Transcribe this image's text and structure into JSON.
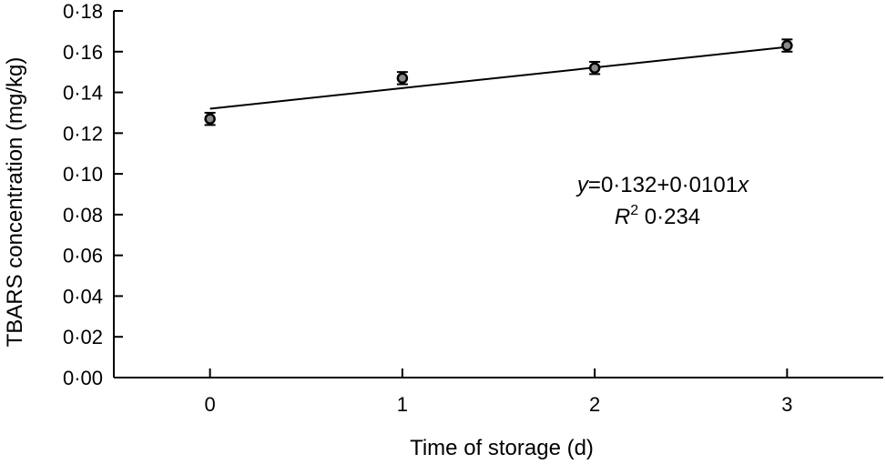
{
  "chart_data": {
    "type": "scatter",
    "xlabel": "Time of storage (d)",
    "ylabel": "TBARS concentration (mg/kg)",
    "xlim": [
      -0.5,
      3.5
    ],
    "ylim": [
      0,
      0.18
    ],
    "x_ticks": [
      0,
      1,
      2,
      3
    ],
    "x_tick_labels": [
      "0",
      "1",
      "2",
      "3"
    ],
    "y_ticks": [
      0,
      0.02,
      0.04,
      0.06,
      0.08,
      0.1,
      0.12,
      0.14,
      0.16,
      0.18
    ],
    "y_tick_labels": [
      "0·00",
      "0·02",
      "0·04",
      "0·06",
      "0·08",
      "0·10",
      "0·12",
      "0·14",
      "0·16",
      "0·18"
    ],
    "grid": false,
    "series": [
      {
        "x": [
          0,
          1,
          2,
          3
        ],
        "y": [
          0.127,
          0.147,
          0.152,
          0.163
        ],
        "error": [
          0.003,
          0.003,
          0.003,
          0.003
        ]
      }
    ],
    "fit": {
      "intercept": 0.132,
      "slope": 0.0101,
      "x_range": [
        0,
        3
      ]
    },
    "annotation": {
      "eq_y": "y",
      "eq_rest": "=0·132+0·0101",
      "eq_x": "x",
      "r2_symbol": "R",
      "r2_exp": "2",
      "r2_value": " 0·234"
    }
  }
}
